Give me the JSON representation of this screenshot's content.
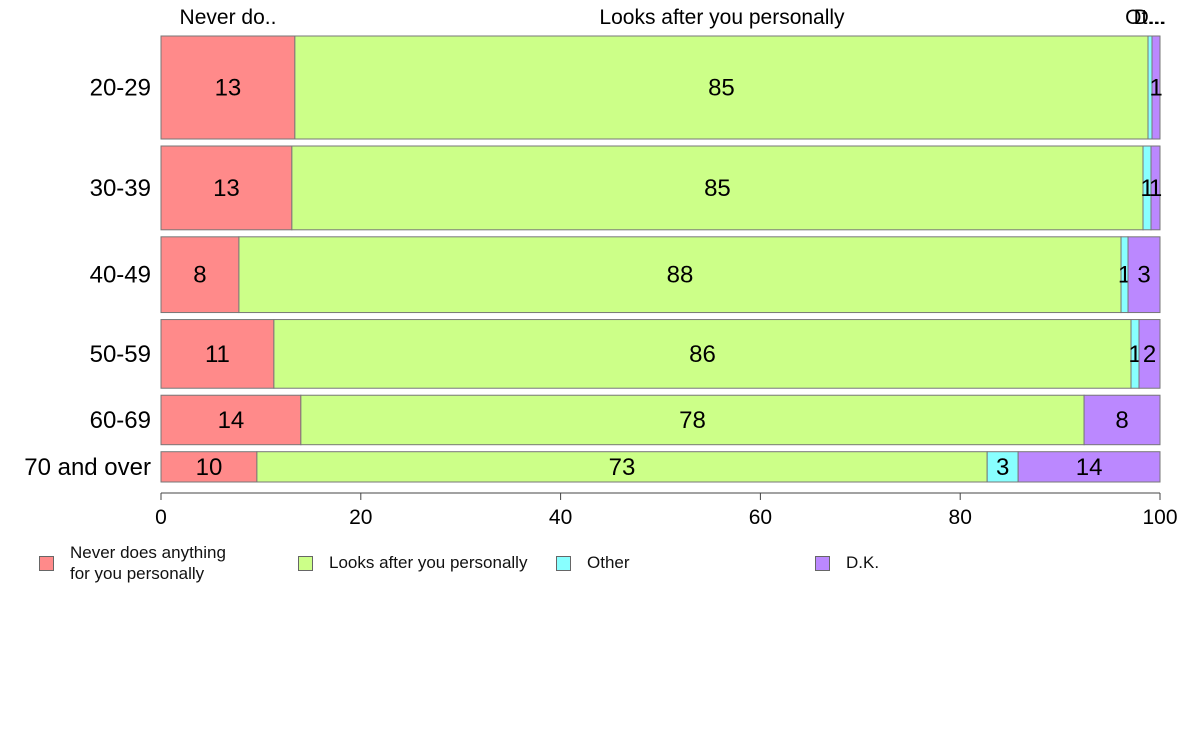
{
  "chart_data": {
    "type": "bar",
    "orientation": "horizontal",
    "stacked": true,
    "variable_width": true,
    "categories": [
      "20-29",
      "30-39",
      "40-49",
      "50-59",
      "60-69",
      "70 and over"
    ],
    "top_labels": [
      "Never do..",
      "Looks after you personally",
      "Ot...",
      "D..."
    ],
    "series": [
      {
        "name": "Never does anything\nfor you personally",
        "color": "#FF8A8A",
        "values": [
          13.4,
          13.1,
          7.8,
          11.3,
          14.0,
          9.6
        ]
      },
      {
        "name": "Looks after you personally",
        "color": "#CCFF88",
        "values": [
          85.4,
          85.2,
          88.3,
          85.8,
          78.4,
          73.1
        ]
      },
      {
        "name": "Other",
        "color": "#88FFFF",
        "values": [
          0.4,
          0.8,
          0.7,
          0.8,
          0.0,
          3.1
        ]
      },
      {
        "name": "D.K.",
        "color": "#BB88FF",
        "values": [
          0.8,
          0.9,
          3.2,
          2.1,
          7.6,
          14.2
        ]
      }
    ],
    "data_labels": [
      [
        "13",
        "85",
        "",
        "1"
      ],
      [
        "13",
        "85",
        "1",
        "1"
      ],
      [
        "8",
        "88",
        "1",
        "3"
      ],
      [
        "11",
        "86",
        "1",
        "2"
      ],
      [
        "14",
        "78",
        "",
        "8"
      ],
      [
        "10",
        "73",
        "3",
        "14"
      ]
    ],
    "row_weights": [
      102,
      83,
      75,
      68,
      49,
      30
    ],
    "x_ticks": [
      "0",
      "20",
      "40",
      "60",
      "80",
      "100"
    ],
    "xlim": [
      0,
      100
    ],
    "legend_position": "bottom"
  }
}
